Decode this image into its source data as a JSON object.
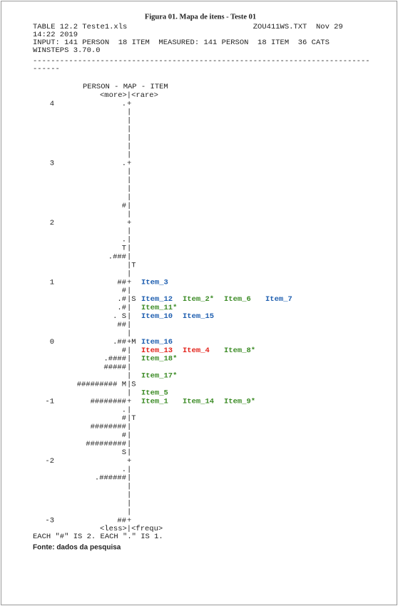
{
  "title": "Figura 01. Mapa de itens - Teste 01",
  "header": [
    "TABLE 12.2 Teste1.xls                            ZOU411WS.TXT  Nov 29",
    "14:22 2019",
    "INPUT: 141 PERSON  18 ITEM  MEASURED: 141 PERSON  18 ITEM  36 CATS",
    "WINSTEPS 3.70.0",
    "---------------------------------------------------------------------------",
    "------"
  ],
  "map": {
    "heading": "PERSON - MAP - ITEM",
    "top": "<more>|<rare>",
    "bottom": "<less>|<frequ>",
    "item_colors": {
      "blue": "#1f5fb0",
      "green": "#3d8c27",
      "red": "#e3231b"
    },
    "rows": [
      {
        "label": "4",
        "persons": ".",
        "axis": "+"
      },
      {
        "axis": "|"
      },
      {
        "axis": "|"
      },
      {
        "axis": "|"
      },
      {
        "axis": "|"
      },
      {
        "axis": "|"
      },
      {
        "axis": "|"
      },
      {
        "label": "3",
        "persons": ".",
        "axis": "+"
      },
      {
        "axis": "|"
      },
      {
        "axis": "|"
      },
      {
        "axis": "|"
      },
      {
        "axis": "|"
      },
      {
        "persons": "#",
        "axis": "|"
      },
      {
        "axis": "|"
      },
      {
        "label": "2",
        "axis": "+"
      },
      {
        "axis": "|"
      },
      {
        "persons": ".",
        "axis": "|"
      },
      {
        "persons": "T",
        "axis": "|"
      },
      {
        "persons": ".###",
        "axis": "|"
      },
      {
        "axis": "|T"
      },
      {
        "axis": "|"
      },
      {
        "label": "1",
        "persons": "##",
        "axis": "+",
        "items": [
          {
            "text": "Item_3",
            "color": "blue"
          }
        ]
      },
      {
        "persons": "#",
        "axis": "|"
      },
      {
        "persons": ".#",
        "axis": "|S",
        "items": [
          {
            "text": "Item_12",
            "color": "blue"
          },
          {
            "text": "Item_2*",
            "color": "green"
          },
          {
            "text": "Item_6",
            "color": "green"
          },
          {
            "text": "Item_7",
            "color": "blue"
          }
        ]
      },
      {
        "persons": ".#",
        "axis": "|",
        "items": [
          {
            "text": "Item_11*",
            "color": "green"
          }
        ]
      },
      {
        "persons": ". S",
        "axis": "|",
        "items": [
          {
            "text": "Item_10",
            "color": "blue"
          },
          {
            "text": "Item_15",
            "color": "blue"
          }
        ]
      },
      {
        "persons": "##",
        "axis": "|"
      },
      {
        "axis": "|"
      },
      {
        "label": "0",
        "persons": ".##",
        "axis": "+M",
        "items": [
          {
            "text": "Item_16",
            "color": "blue"
          }
        ]
      },
      {
        "persons": "#",
        "axis": "|",
        "items": [
          {
            "text": "Item_13",
            "color": "red"
          },
          {
            "text": "Item_4",
            "color": "red"
          },
          {
            "text": "Item_8*",
            "color": "green"
          }
        ]
      },
      {
        "persons": ".####",
        "axis": "|",
        "items": [
          {
            "text": "Item_18*",
            "color": "green"
          }
        ]
      },
      {
        "persons": "#####",
        "axis": "|"
      },
      {
        "axis": "|",
        "items": [
          {
            "text": "Item_17*",
            "color": "green"
          }
        ]
      },
      {
        "persons": "######### M",
        "axis": "|S"
      },
      {
        "axis": "|",
        "items": [
          {
            "text": "Item_5",
            "color": "green"
          }
        ]
      },
      {
        "label": "-1",
        "persons": "########",
        "axis": "+",
        "items": [
          {
            "text": "Item_1",
            "color": "green"
          },
          {
            "text": "Item_14",
            "color": "green"
          },
          {
            "text": "Item_9*",
            "color": "green"
          }
        ]
      },
      {
        "persons": ".",
        "axis": "|"
      },
      {
        "persons": "#",
        "axis": "|T"
      },
      {
        "persons": "########",
        "axis": "|"
      },
      {
        "persons": "#",
        "axis": "|"
      },
      {
        "persons": "#########",
        "axis": "|"
      },
      {
        "persons": "S",
        "axis": "|"
      },
      {
        "label": "-2",
        "axis": "+"
      },
      {
        "persons": ".",
        "axis": "|"
      },
      {
        "persons": ".######",
        "axis": "|"
      },
      {
        "axis": "|"
      },
      {
        "axis": "|"
      },
      {
        "axis": "|"
      },
      {
        "axis": "|"
      },
      {
        "label": "-3",
        "persons": "##",
        "axis": "+"
      }
    ]
  },
  "footer": "EACH \"#\" IS 2. EACH \".\" IS 1.",
  "source": "Fonte: dados da pesquisa"
}
